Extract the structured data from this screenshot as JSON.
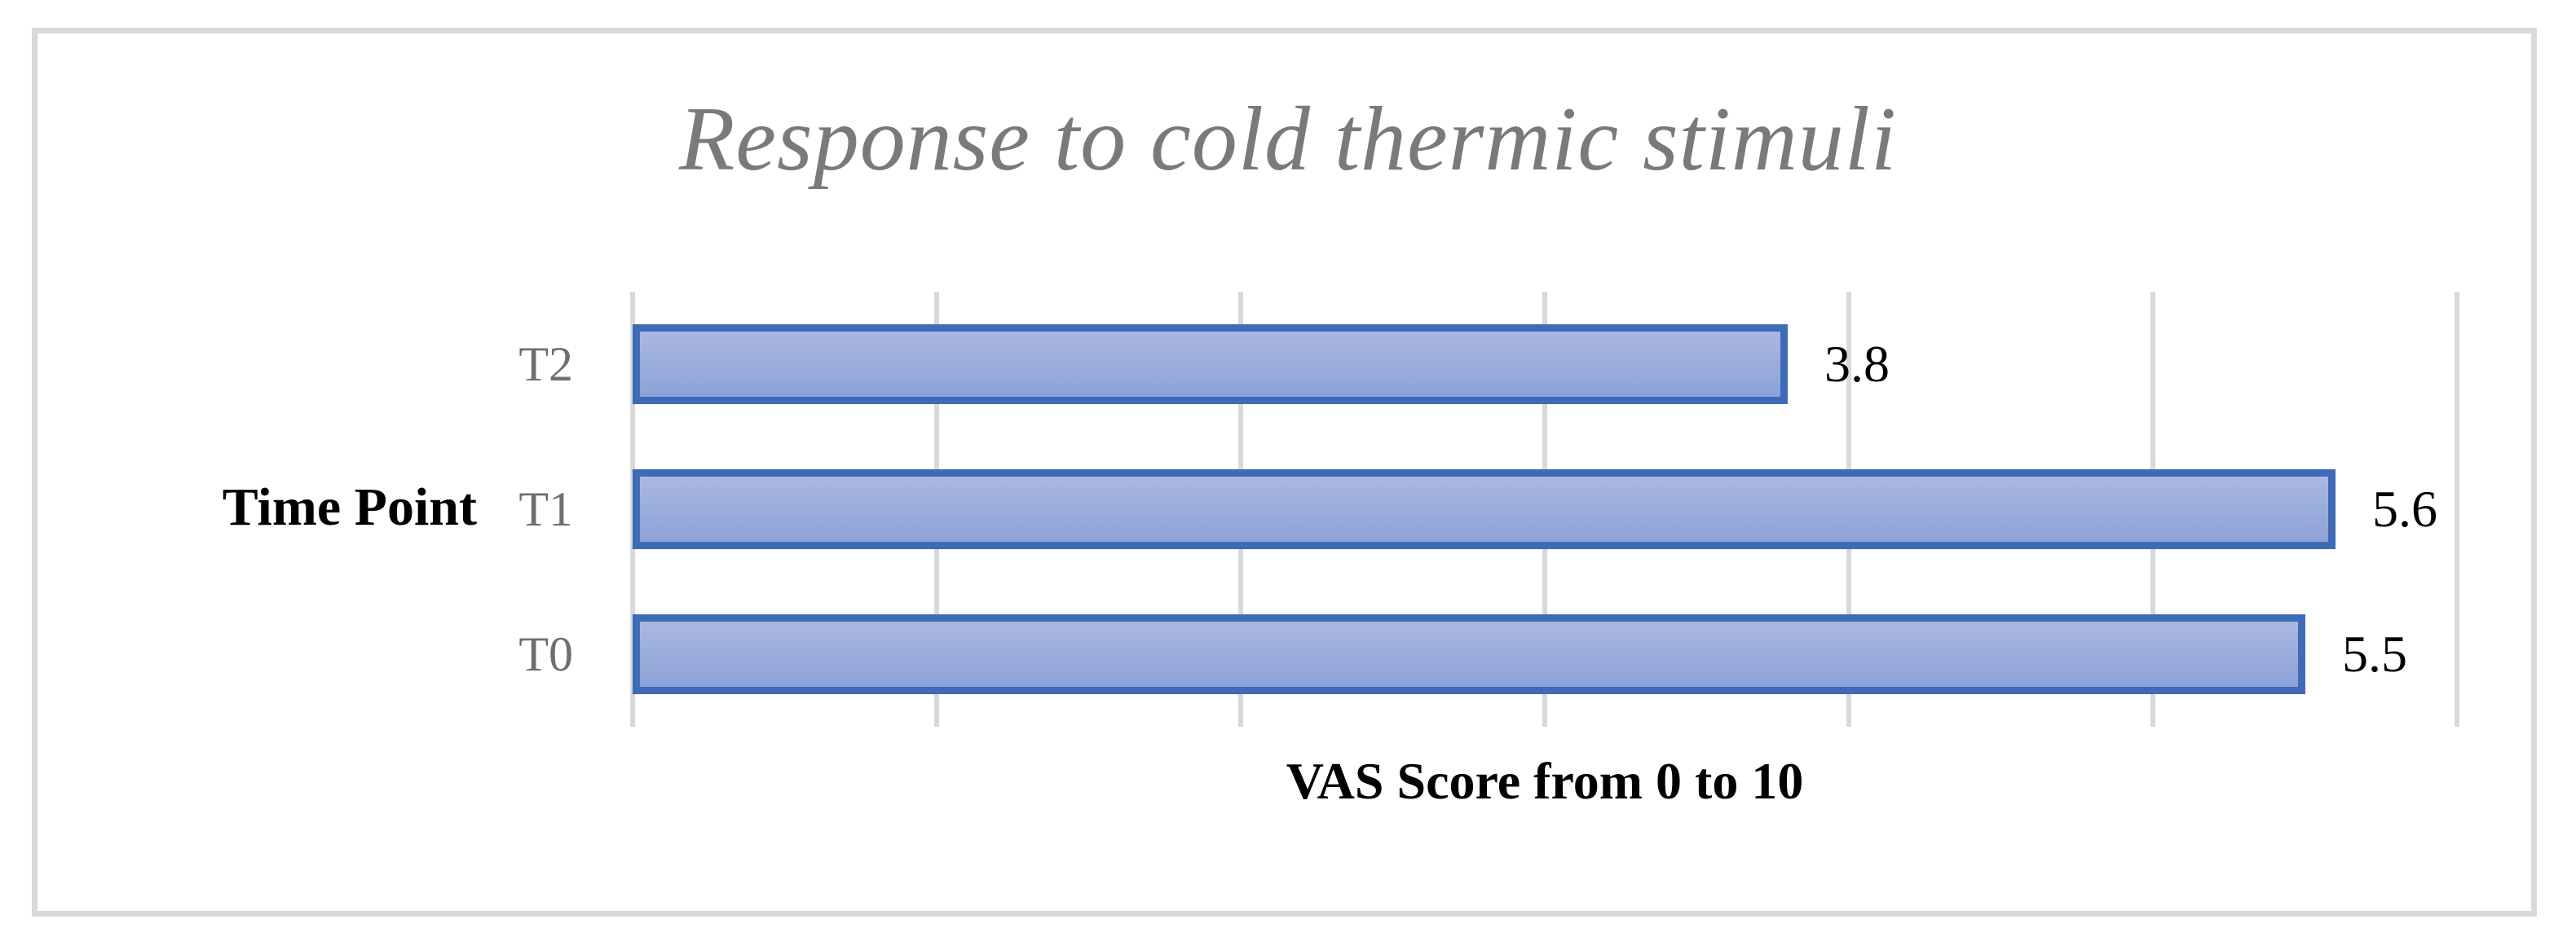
{
  "figure": {
    "title": "Response to cold thermic stimuli",
    "x_axis_title": "VAS Score from 0 to 10",
    "y_axis_title": "Time Point"
  },
  "chart_data": {
    "type": "bar",
    "orientation": "horizontal",
    "title": "Response to cold thermic stimuli",
    "xlabel": "VAS Score from 0 to 10",
    "ylabel": "Time Point",
    "categories": [
      "T2",
      "T1",
      "T0"
    ],
    "values": [
      3.8,
      5.6,
      5.5
    ],
    "data_labels": [
      "3.8",
      "5.6",
      "5.5"
    ],
    "xlim": [
      0,
      6
    ],
    "x_gridlines": [
      0,
      1,
      2,
      3,
      4,
      5,
      6
    ],
    "grid_on": true,
    "legend": "none",
    "colors": {
      "bar_fill_top": "#A9B8E1",
      "bar_fill_bottom": "#8CA2D7",
      "bar_border": "#3E6BB7",
      "gridline": "#D9D9D9",
      "figure_border": "#D9D9D9",
      "category_label": "#6F6F6F",
      "title_text": "#7A7A7A",
      "label_text": "#000000",
      "background": "#FFFFFF"
    }
  }
}
